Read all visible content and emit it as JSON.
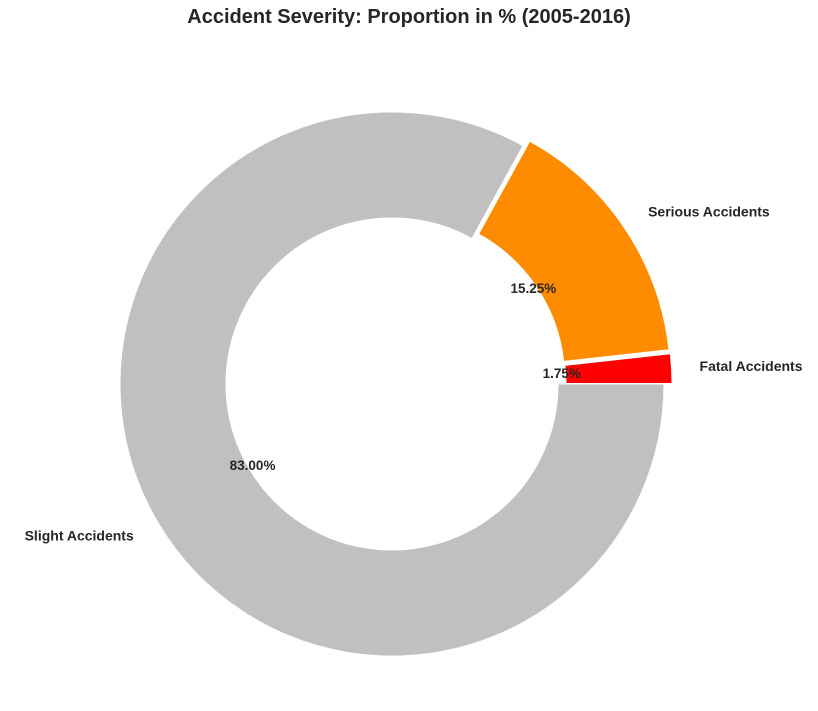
{
  "chart_data": {
    "type": "pie",
    "variant": "donut",
    "title": "Accident Severity: Proportion in % (2005-2016)",
    "start_angle_deg": 0,
    "direction": "counterclockwise",
    "slices": [
      {
        "label": "Fatal Accidents",
        "value": 1.75,
        "pct_text": "1.75%",
        "color": "#ff0000",
        "exploded": true
      },
      {
        "label": "Serious Accidents",
        "value": 15.25,
        "pct_text": "15.25%",
        "color": "#ff8c00",
        "exploded": true
      },
      {
        "label": "Slight Accidents",
        "value": 83.0,
        "pct_text": "83.00%",
        "color": "#c0c0c0",
        "exploded": false
      }
    ]
  }
}
